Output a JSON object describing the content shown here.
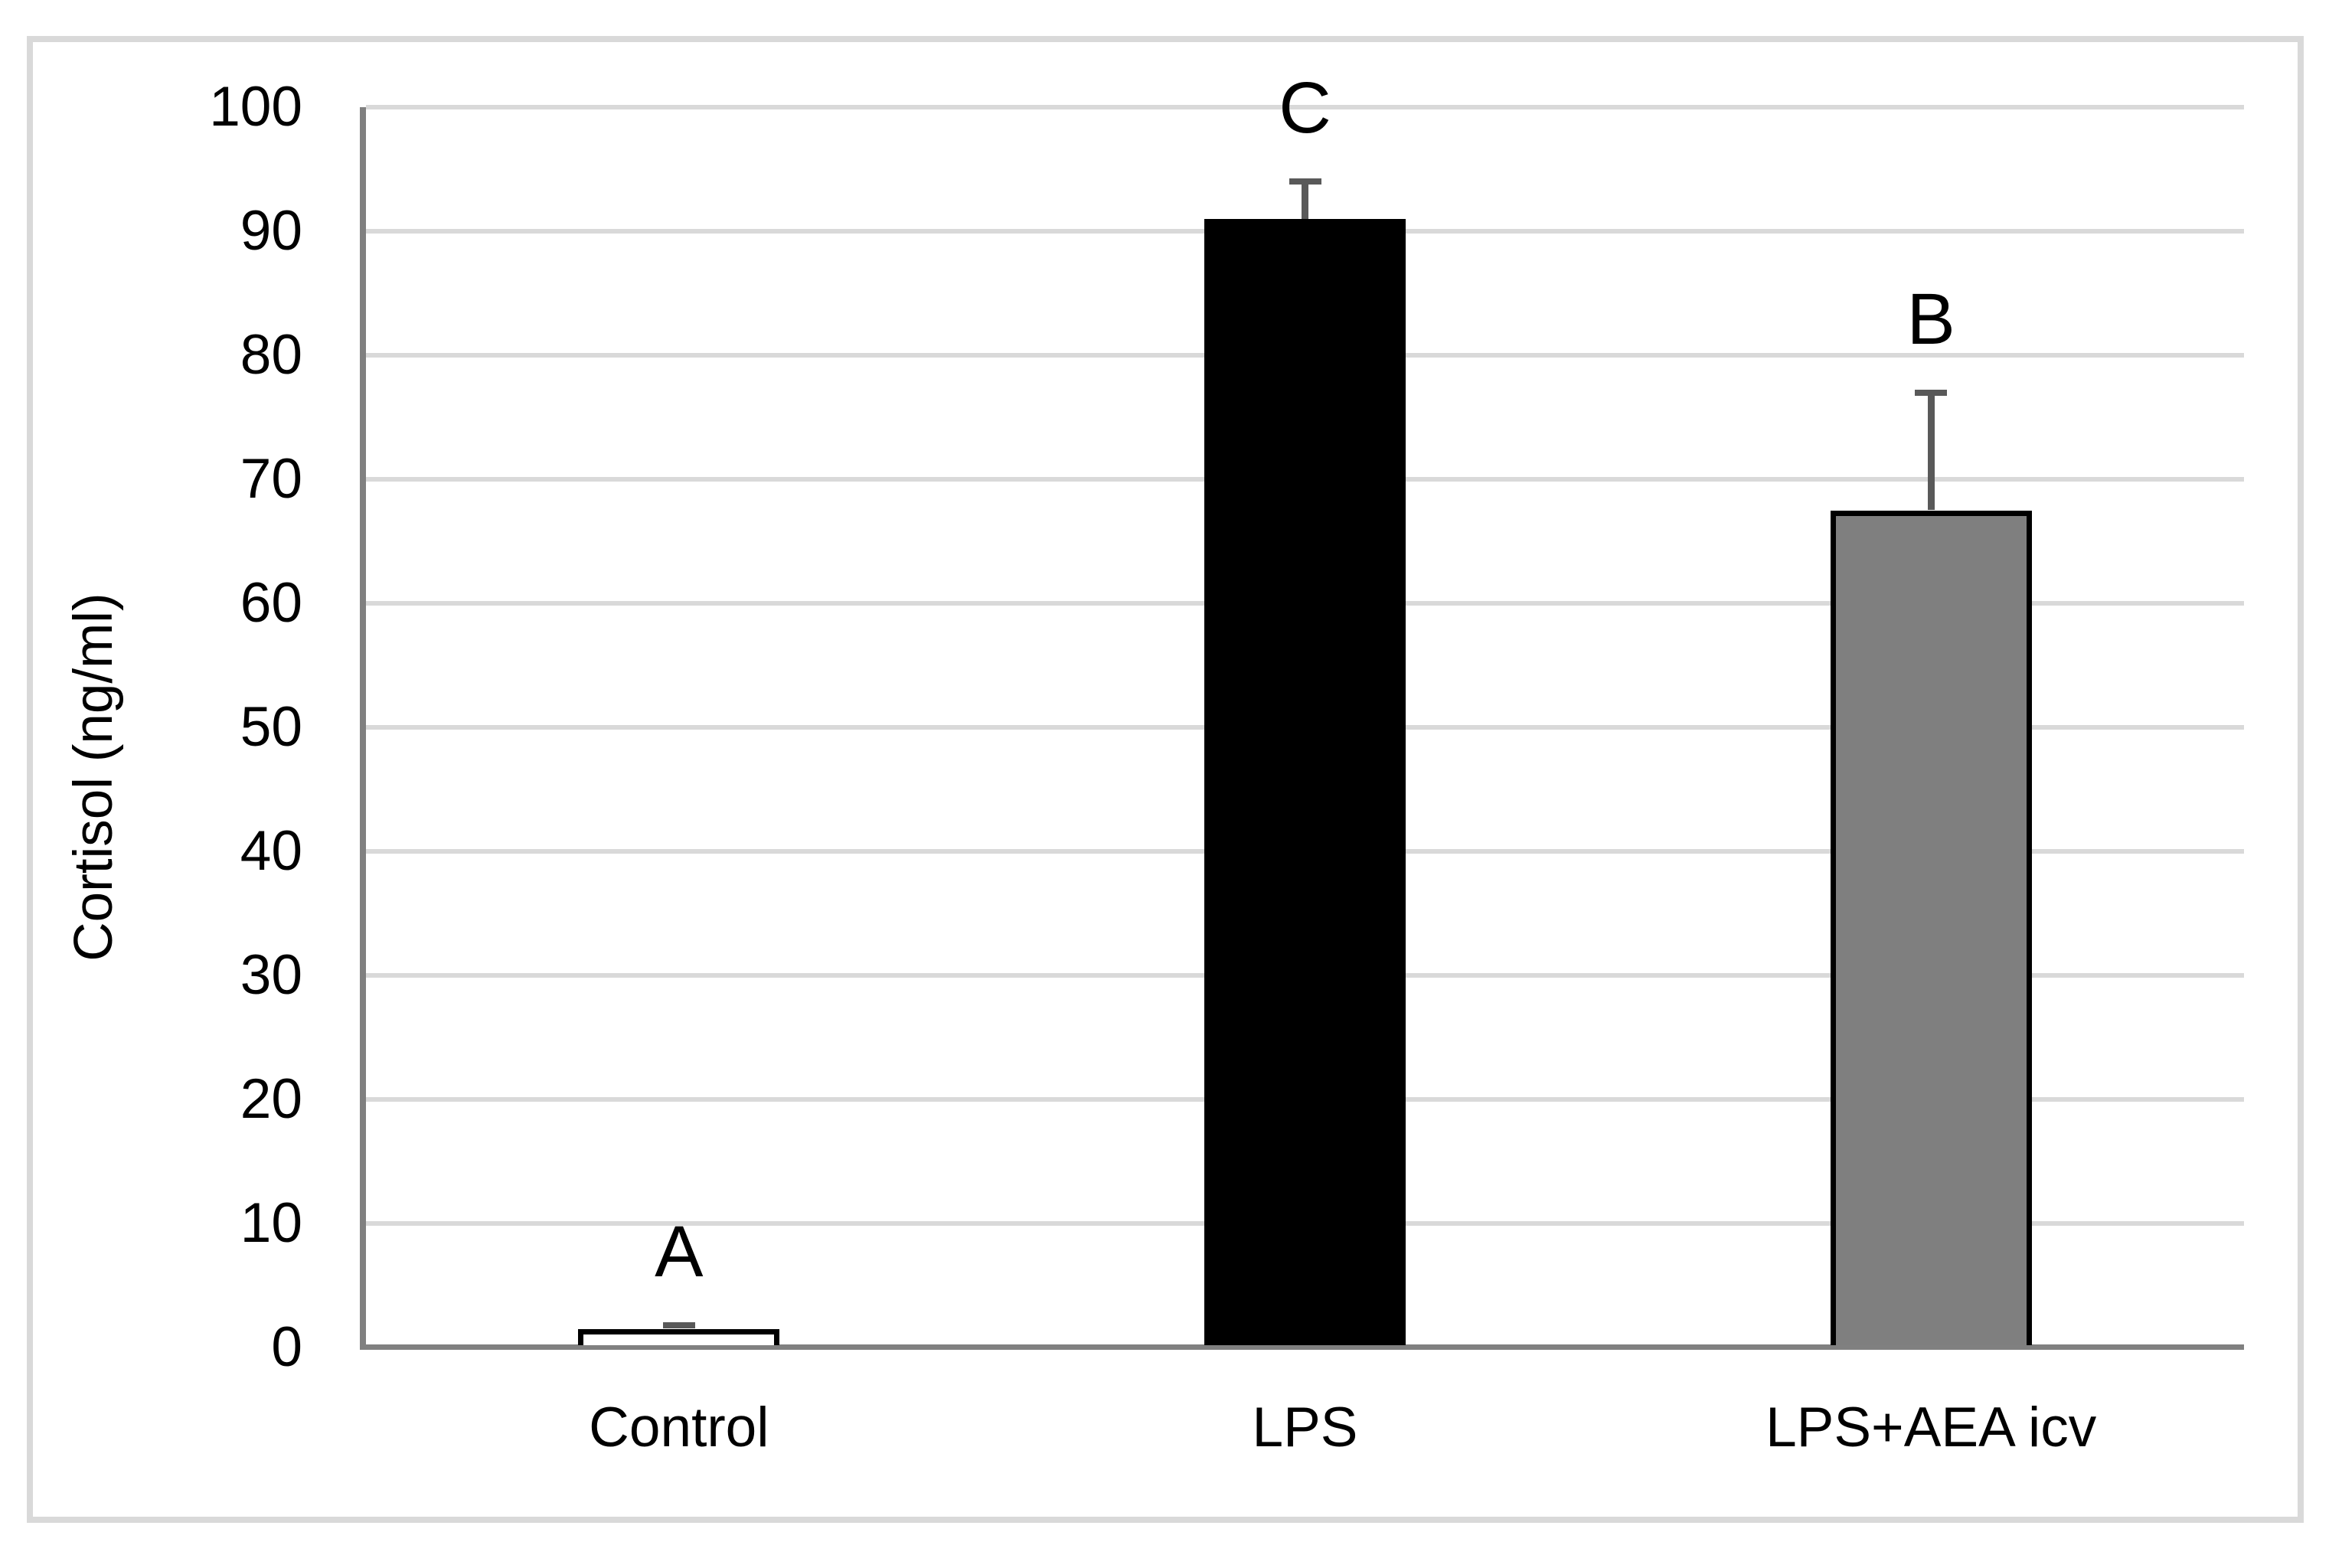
{
  "chart_data": {
    "type": "bar",
    "title": "",
    "xlabel": "",
    "ylabel": "Cortisol (ng/ml)",
    "categories": [
      "Control",
      "LPS",
      "LPS+AEA icv"
    ],
    "values": [
      1.5,
      91,
      67.5
    ],
    "errors": [
      0.3,
      3,
      9.5
    ],
    "bar_labels": [
      "A",
      "C",
      "B"
    ],
    "bar_fill_colors": [
      "#ffffff",
      "#000000",
      "#7f7f7f"
    ],
    "bar_border_color": "#000000",
    "yticks": [
      0,
      10,
      20,
      30,
      40,
      50,
      60,
      70,
      80,
      90,
      100
    ],
    "ylim": [
      0,
      100
    ],
    "grid": true,
    "legend_position": "none"
  },
  "colors": {
    "background": "#ffffff",
    "frame_border": "#d9d9d9",
    "gridline": "#d9d9d9",
    "axis_line": "#808080",
    "error_bar": "#595959",
    "text": "#000000"
  }
}
